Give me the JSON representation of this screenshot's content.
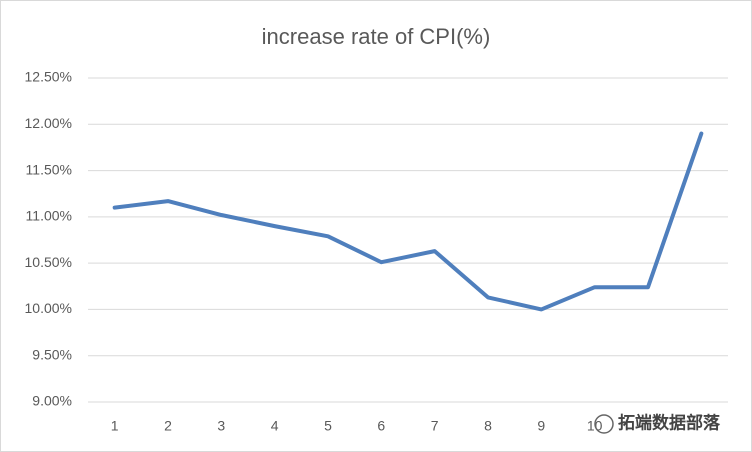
{
  "chart_data": {
    "type": "line",
    "title": "increase rate of CPI(%)",
    "categories": [
      "1",
      "2",
      "3",
      "4",
      "5",
      "6",
      "7",
      "8",
      "9",
      "10",
      null,
      null
    ],
    "series": [
      {
        "color": "#4f7fbd",
        "values": [
          11.1,
          11.17,
          11.02,
          10.9,
          10.79,
          10.51,
          10.63,
          10.13,
          10.0,
          10.24,
          10.24,
          11.9
        ]
      }
    ],
    "ylim": [
      9,
      12.5
    ],
    "yticks": [
      {
        "value": 9,
        "label": "9.00%"
      },
      {
        "value": 9.5,
        "label": "9.50%"
      },
      {
        "value": 10,
        "label": "10.00%"
      },
      {
        "value": 10.5,
        "label": "10.50%"
      },
      {
        "value": 11,
        "label": "11.00%"
      },
      {
        "value": 11.5,
        "label": "11.50%"
      },
      {
        "value": 12,
        "label": "12.00%"
      },
      {
        "value": 12.5,
        "label": "12.50%"
      }
    ],
    "grid": true
  },
  "watermark": "拓端数据部落"
}
